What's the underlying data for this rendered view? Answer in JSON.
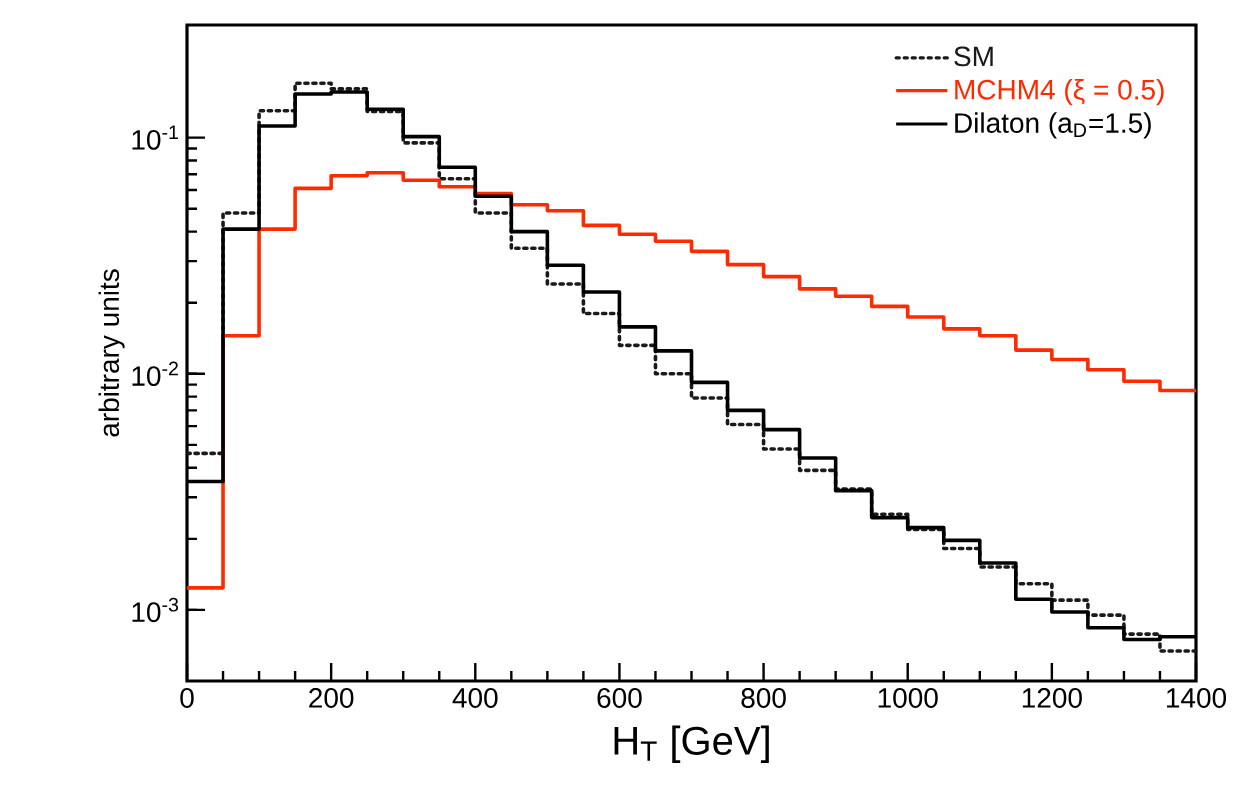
{
  "chart_data": {
    "type": "histogram",
    "xlabel": "H$_{T}$ [GeV]",
    "ylabel": "arbitrary units",
    "bins": [
      0,
      50,
      100,
      150,
      200,
      250,
      300,
      350,
      400,
      450,
      500,
      550,
      600,
      650,
      700,
      750,
      800,
      850,
      900,
      950,
      1000,
      1050,
      1100,
      1150,
      1200,
      1250,
      1300,
      1350,
      1400
    ],
    "series": [
      {
        "name": "SM",
        "color": "#1a1a1a",
        "line_style": "dotted",
        "values": [
          0.0046,
          0.048,
          0.13,
          0.17,
          0.161,
          0.129,
          0.095,
          0.067,
          0.048,
          0.034,
          0.024,
          0.018,
          0.0132,
          0.01,
          0.0079,
          0.0061,
          0.0048,
          0.0039,
          0.00325,
          0.00254,
          0.00219,
          0.00182,
          0.00152,
          0.00129,
          0.0011,
          0.00095,
          0.00079,
          0.00067
        ]
      },
      {
        "name": "MCHM4 (ξ = 0.5)",
        "color": "#ff2a00",
        "line_style": "solid",
        "values": [
          0.00124,
          0.0145,
          0.041,
          0.061,
          0.069,
          0.071,
          0.066,
          0.062,
          0.058,
          0.052,
          0.049,
          0.0425,
          0.039,
          0.0364,
          0.033,
          0.029,
          0.0258,
          0.0229,
          0.0213,
          0.0193,
          0.0174,
          0.0155,
          0.0145,
          0.0126,
          0.0115,
          0.0104,
          0.0093,
          0.0085
        ]
      },
      {
        "name": "Dilaton (a$_{D}$=1.5)",
        "color": "#000000",
        "line_style": "solid",
        "values": [
          0.0035,
          0.041,
          0.112,
          0.153,
          0.156,
          0.132,
          0.101,
          0.075,
          0.0565,
          0.04,
          0.0288,
          0.0222,
          0.0158,
          0.0125,
          0.0092,
          0.007,
          0.0058,
          0.0044,
          0.0032,
          0.00246,
          0.00223,
          0.00197,
          0.00158,
          0.00111,
          0.00098,
          0.00084,
          0.00075,
          0.00077
        ]
      }
    ],
    "xlim": [
      0,
      1400
    ],
    "xticks": [
      0,
      200,
      400,
      600,
      800,
      1000,
      1200,
      1400
    ],
    "ylim": [
      0.0005,
      0.3
    ],
    "yticks": [
      {
        "value": 0.001,
        "label": "10$^{-3}$"
      },
      {
        "value": 0.01,
        "label": "10$^{-2}$"
      },
      {
        "value": 0.1,
        "label": "10$^{-1}$"
      }
    ],
    "log": "y",
    "legend": "top right"
  }
}
